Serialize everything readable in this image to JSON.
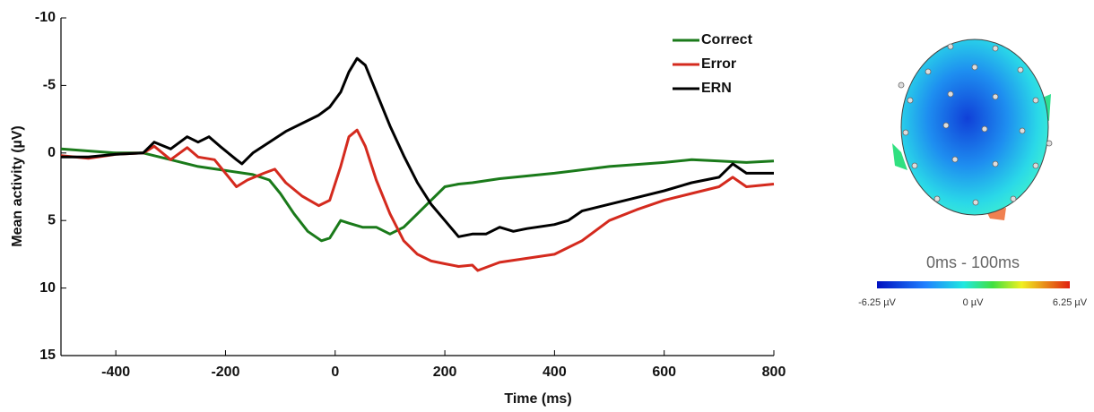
{
  "chart_data": {
    "type": "line",
    "xlabel": "Time (ms)",
    "ylabel": "Mean activity (µV)",
    "xlim": [
      -500,
      800
    ],
    "xticks": [
      -400,
      -200,
      0,
      200,
      400,
      600,
      800
    ],
    "ylim": [
      -10,
      15
    ],
    "yticks": [
      -10,
      -5,
      0,
      5,
      10,
      15
    ],
    "y_inverted": true,
    "grid": false,
    "legend": "upper right",
    "series": [
      {
        "name": "Correct",
        "color": "#1a7a1a",
        "x": [
          -500,
          -400,
          -350,
          -300,
          -250,
          -200,
          -150,
          -120,
          -100,
          -75,
          -50,
          -25,
          -10,
          10,
          25,
          50,
          75,
          100,
          125,
          150,
          175,
          200,
          225,
          250,
          300,
          400,
          500,
          600,
          650,
          700,
          750,
          800
        ],
        "values": [
          -0.3,
          0,
          0,
          0.5,
          1,
          1.3,
          1.6,
          2,
          3,
          4.5,
          5.8,
          6.5,
          6.3,
          5,
          5.2,
          5.5,
          5.5,
          6,
          5.5,
          4.5,
          3.5,
          2.5,
          2.3,
          2.2,
          1.9,
          1.5,
          1,
          0.7,
          0.5,
          0.6,
          0.7,
          0.6
        ]
      },
      {
        "name": "Error",
        "color": "#d42a1e",
        "x": [
          -500,
          -450,
          -400,
          -350,
          -330,
          -300,
          -270,
          -250,
          -220,
          -200,
          -180,
          -160,
          -130,
          -110,
          -90,
          -60,
          -30,
          -10,
          10,
          25,
          40,
          55,
          75,
          100,
          125,
          150,
          175,
          200,
          225,
          250,
          260,
          300,
          350,
          400,
          450,
          500,
          550,
          600,
          650,
          700,
          725,
          750,
          800
        ],
        "values": [
          0.2,
          0.4,
          0.1,
          0,
          -0.5,
          0.5,
          -0.4,
          0.3,
          0.5,
          1.5,
          2.5,
          2,
          1.5,
          1.2,
          2.2,
          3.2,
          3.9,
          3.5,
          1,
          -1.2,
          -1.7,
          -0.5,
          2,
          4.5,
          6.5,
          7.5,
          8,
          8.2,
          8.4,
          8.3,
          8.7,
          8.1,
          7.8,
          7.5,
          6.5,
          5,
          4.2,
          3.5,
          3,
          2.5,
          1.8,
          2.5,
          2.3
        ]
      },
      {
        "name": "ERN",
        "color": "#000000",
        "x": [
          -500,
          -450,
          -400,
          -350,
          -330,
          -300,
          -270,
          -250,
          -230,
          -210,
          -180,
          -170,
          -150,
          -120,
          -90,
          -60,
          -30,
          -10,
          10,
          25,
          40,
          55,
          75,
          100,
          125,
          150,
          175,
          200,
          225,
          250,
          275,
          300,
          325,
          350,
          400,
          425,
          450,
          500,
          550,
          600,
          650,
          700,
          725,
          750,
          800
        ],
        "values": [
          0.3,
          0.3,
          0.1,
          0,
          -0.8,
          -0.3,
          -1.2,
          -0.8,
          -1.2,
          -0.5,
          0.5,
          0.8,
          0,
          -0.8,
          -1.6,
          -2.2,
          -2.8,
          -3.4,
          -4.5,
          -6,
          -7,
          -6.5,
          -4.5,
          -2,
          0.2,
          2.2,
          3.8,
          5,
          6.2,
          6,
          6,
          5.5,
          5.8,
          5.6,
          5.3,
          5,
          4.3,
          3.8,
          3.3,
          2.8,
          2.2,
          1.8,
          0.8,
          1.5,
          1.5
        ]
      }
    ]
  },
  "topomap": {
    "title": "0ms - 100ms",
    "colorbar_labels": [
      "-6.25 µV",
      "0 µV",
      "6.25 µV"
    ]
  }
}
